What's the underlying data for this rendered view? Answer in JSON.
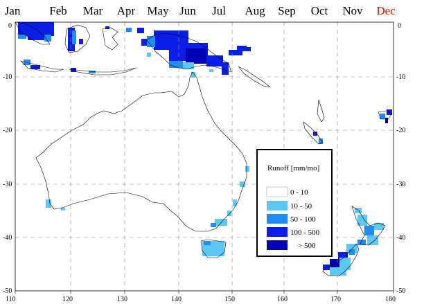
{
  "months": {
    "items": [
      {
        "label": "Jan",
        "color": "#000000"
      },
      {
        "label": "Feb",
        "color": "#000000"
      },
      {
        "label": "Mar",
        "color": "#000000"
      },
      {
        "label": "Apr",
        "color": "#000000"
      },
      {
        "label": "May",
        "color": "#000000"
      },
      {
        "label": "Jun",
        "color": "#000000"
      },
      {
        "label": "Jul",
        "color": "#000000"
      },
      {
        "label": "Aug",
        "color": "#000000"
      },
      {
        "label": "Sep",
        "color": "#000000"
      },
      {
        "label": "Oct",
        "color": "#000000"
      },
      {
        "label": "Nov",
        "color": "#000000"
      },
      {
        "label": "Dec",
        "color": "#ff0000"
      }
    ],
    "selected": "Dec"
  },
  "map": {
    "lon_ticks": [
      "110",
      "120",
      "130",
      "140",
      "150",
      "160",
      "170",
      "180"
    ],
    "lat_ticks_left": [
      "0",
      "-10",
      "-20",
      "-30",
      "-40",
      "-50"
    ],
    "lat_ticks_right": [
      "0",
      "-10",
      "-20",
      "-30",
      "-40",
      "-50"
    ]
  },
  "legend": {
    "title": "Runoff [mm/mo]",
    "items": [
      {
        "label": "0  -  10",
        "color": "#ffffff"
      },
      {
        "label": "10  -  50",
        "color": "#5ec8f5"
      },
      {
        "label": "50  -  100",
        "color": "#1e8cf0"
      },
      {
        "label": "100  -  500",
        "color": "#0a1ee6"
      },
      {
        "label": ">  500",
        "color": "#0000b4"
      }
    ]
  }
}
